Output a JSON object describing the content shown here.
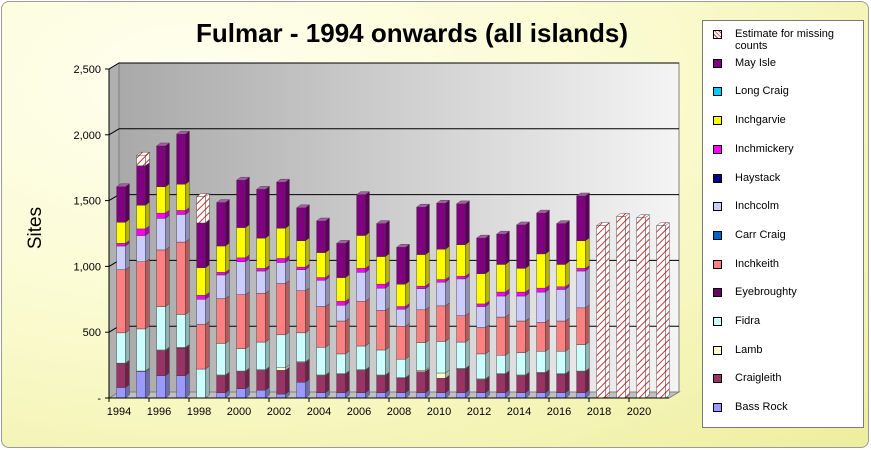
{
  "chart_data": {
    "type": "bar",
    "stacked": true,
    "title": "Fulmar - 1994 onwards (all islands)",
    "ylabel": "Sites",
    "xlabel": "",
    "ylim": [
      0,
      2500
    ],
    "yticks": [
      "-",
      "500",
      "1,000",
      "1,500",
      "2,000",
      "2,500"
    ],
    "ytick_values": [
      0,
      500,
      1000,
      1500,
      2000,
      2500
    ],
    "xtick_labels": [
      "1994",
      "1996",
      "1998",
      "2000",
      "2002",
      "2004",
      "2006",
      "2008",
      "2010",
      "2012",
      "2014",
      "2016",
      "2018",
      "2020"
    ],
    "grid": true,
    "legend_position": "right",
    "categories": [
      "1994",
      "1995",
      "1996",
      "1997",
      "1998",
      "1999",
      "2000",
      "2001",
      "2002",
      "2003",
      "2004",
      "2005",
      "2006",
      "2007",
      "2008",
      "2009",
      "2010",
      "2011",
      "2012",
      "2013",
      "2014",
      "2015",
      "2016",
      "2017",
      "2018",
      "2019",
      "2020",
      "2021"
    ],
    "series": [
      {
        "name": "Bass Rock",
        "color": "#9999ff",
        "values": [
          80,
          200,
          170,
          170,
          0,
          40,
          70,
          60,
          30,
          120,
          40,
          40,
          40,
          40,
          40,
          40,
          40,
          40,
          40,
          40,
          40,
          40,
          40,
          40,
          0,
          0,
          0,
          0
        ]
      },
      {
        "name": "Craigleith",
        "color": "#993366",
        "values": [
          180,
          0,
          190,
          210,
          0,
          130,
          130,
          150,
          180,
          150,
          130,
          140,
          170,
          130,
          110,
          160,
          110,
          180,
          100,
          140,
          130,
          150,
          140,
          160,
          0,
          0,
          0,
          0
        ]
      },
      {
        "name": "Lamb",
        "color": "#ffffcc",
        "values": [
          5,
          5,
          5,
          5,
          0,
          5,
          5,
          5,
          20,
          5,
          5,
          5,
          5,
          5,
          5,
          10,
          40,
          5,
          5,
          5,
          5,
          5,
          5,
          5,
          0,
          0,
          0,
          0
        ]
      },
      {
        "name": "Fidra",
        "color": "#ccffff",
        "values": [
          230,
          320,
          330,
          250,
          220,
          240,
          170,
          210,
          250,
          220,
          210,
          150,
          180,
          190,
          140,
          210,
          240,
          200,
          190,
          140,
          170,
          160,
          170,
          200,
          0,
          0,
          0,
          0
        ]
      },
      {
        "name": "Eyebroughty",
        "color": "#660066",
        "values": [
          0,
          0,
          0,
          0,
          0,
          0,
          0,
          0,
          0,
          0,
          0,
          0,
          0,
          0,
          0,
          0,
          0,
          0,
          0,
          0,
          0,
          0,
          0,
          0,
          0,
          0,
          0,
          0
        ]
      },
      {
        "name": "Inchkeith",
        "color": "#ff8080",
        "values": [
          480,
          510,
          430,
          550,
          340,
          340,
          410,
          370,
          390,
          320,
          310,
          250,
          340,
          300,
          250,
          250,
          270,
          200,
          200,
          290,
          240,
          220,
          230,
          280,
          0,
          0,
          0,
          0
        ]
      },
      {
        "name": "Carr Craig",
        "color": "#0066cc",
        "values": [
          0,
          0,
          0,
          0,
          0,
          0,
          0,
          0,
          0,
          0,
          0,
          0,
          0,
          0,
          0,
          0,
          0,
          0,
          0,
          0,
          0,
          0,
          0,
          0,
          0,
          0,
          0,
          0
        ]
      },
      {
        "name": "Inchcolm",
        "color": "#ccccff",
        "values": [
          180,
          200,
          240,
          210,
          190,
          180,
          250,
          170,
          160,
          160,
          200,
          120,
          220,
          170,
          130,
          160,
          180,
          280,
          160,
          160,
          190,
          230,
          240,
          280,
          0,
          0,
          0,
          0
        ]
      },
      {
        "name": "Haystack",
        "color": "#000080",
        "values": [
          0,
          0,
          0,
          0,
          0,
          0,
          0,
          0,
          0,
          0,
          0,
          0,
          0,
          0,
          0,
          0,
          0,
          0,
          0,
          0,
          0,
          0,
          0,
          0,
          0,
          0,
          0,
          0
        ]
      },
      {
        "name": "Inchmickery",
        "color": "#ff00ff",
        "values": [
          20,
          50,
          40,
          30,
          30,
          20,
          30,
          20,
          30,
          20,
          20,
          30,
          30,
          30,
          20,
          20,
          20,
          20,
          20,
          30,
          30,
          30,
          20,
          20,
          0,
          0,
          0,
          0
        ]
      },
      {
        "name": "Inchgarvie",
        "color": "#ffff00",
        "values": [
          160,
          180,
          200,
          200,
          210,
          200,
          230,
          230,
          230,
          200,
          190,
          180,
          250,
          210,
          170,
          240,
          230,
          240,
          230,
          210,
          180,
          260,
          170,
          210,
          0,
          0,
          0,
          0
        ]
      },
      {
        "name": "Long Craig",
        "color": "#00ccff",
        "values": [
          0,
          0,
          0,
          0,
          0,
          0,
          0,
          0,
          0,
          0,
          0,
          0,
          0,
          0,
          0,
          0,
          0,
          0,
          0,
          0,
          0,
          0,
          0,
          0,
          0,
          0,
          0,
          0
        ]
      },
      {
        "name": "May Isle",
        "color": "#800080",
        "values": [
          270,
          300,
          310,
          380,
          340,
          330,
          360,
          370,
          350,
          250,
          240,
          260,
          310,
          250,
          280,
          360,
          350,
          310,
          270,
          230,
          330,
          310,
          310,
          340,
          0,
          0,
          0,
          0
        ]
      },
      {
        "name": "Estimate for missing counts",
        "color": "#ffcccc",
        "pattern": "hatch",
        "values": [
          0,
          80,
          0,
          0,
          200,
          0,
          0,
          0,
          0,
          0,
          0,
          0,
          0,
          0,
          0,
          0,
          0,
          0,
          0,
          0,
          0,
          0,
          0,
          0,
          1310,
          1380,
          1370,
          1310
        ]
      }
    ]
  }
}
